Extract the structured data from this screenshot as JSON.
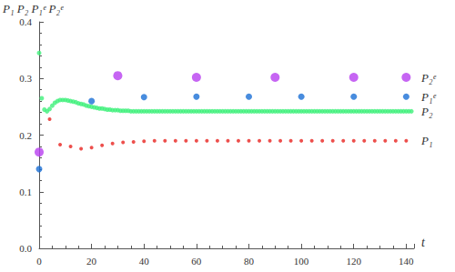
{
  "chart_data": {
    "type": "scatter",
    "x_label": "t",
    "y_label": "P₁ P₂ P₁ᵉ P₂ᵉ",
    "xlim": [
      0,
      143
    ],
    "xticks": [
      0,
      20,
      40,
      60,
      80,
      100,
      120,
      140
    ],
    "ylim": [
      0,
      0.4
    ],
    "yticks": [
      {
        "value": 0,
        "label": "0.0"
      },
      {
        "value": 0.1,
        "label": "0.1"
      },
      {
        "value": 0.2,
        "label": "0.2"
      },
      {
        "value": 0.3,
        "label": "0.3"
      },
      {
        "value": 0.4,
        "label": "0.4"
      }
    ],
    "grid": false,
    "series": [
      {
        "name": "P₂",
        "color": "#3ef07a",
        "marker": "circle",
        "x": [
          0,
          1,
          2,
          3,
          4,
          5,
          6,
          7,
          8,
          9,
          10,
          11,
          12,
          13,
          14,
          15,
          16,
          17,
          18,
          19,
          20,
          21,
          22,
          23,
          24,
          25,
          26,
          27,
          28,
          29,
          30,
          31,
          32,
          33,
          34,
          35,
          36,
          37,
          38,
          39,
          40,
          41,
          42,
          43,
          44,
          45,
          46,
          47,
          48,
          49,
          50,
          51,
          52,
          53,
          54,
          55,
          56,
          57,
          58,
          59,
          60,
          61,
          62,
          63,
          64,
          65,
          66,
          67,
          68,
          69,
          70,
          71,
          72,
          73,
          74,
          75,
          76,
          77,
          78,
          79,
          80,
          81,
          82,
          83,
          84,
          85,
          86,
          87,
          88,
          89,
          90,
          91,
          92,
          93,
          94,
          95,
          96,
          97,
          98,
          99,
          100,
          101,
          102,
          103,
          104,
          105,
          106,
          107,
          108,
          109,
          110,
          111,
          112,
          113,
          114,
          115,
          116,
          117,
          118,
          119,
          120,
          121,
          122,
          123,
          124,
          125,
          126,
          127,
          128,
          129,
          130,
          131,
          132,
          133,
          134,
          135,
          136,
          137,
          138,
          139,
          140,
          141,
          142
        ],
        "values": [
          0.345,
          0.265,
          0.245,
          0.242,
          0.246,
          0.252,
          0.257,
          0.26,
          0.262,
          0.262,
          0.262,
          0.261,
          0.26,
          0.259,
          0.258,
          0.256,
          0.255,
          0.254,
          0.252,
          0.251,
          0.25,
          0.249,
          0.248,
          0.247,
          0.247,
          0.246,
          0.245,
          0.245,
          0.244,
          0.244,
          0.244,
          0.243,
          0.243,
          0.243,
          0.243,
          0.242,
          0.242,
          0.242,
          0.242,
          0.242,
          0.242,
          0.242,
          0.242,
          0.242,
          0.242,
          0.242,
          0.242,
          0.242,
          0.242,
          0.242,
          0.242,
          0.242,
          0.242,
          0.242,
          0.242,
          0.242,
          0.242,
          0.242,
          0.242,
          0.242,
          0.242,
          0.242,
          0.242,
          0.242,
          0.242,
          0.242,
          0.242,
          0.242,
          0.242,
          0.242,
          0.242,
          0.242,
          0.242,
          0.242,
          0.242,
          0.242,
          0.242,
          0.242,
          0.242,
          0.242,
          0.242,
          0.242,
          0.242,
          0.242,
          0.242,
          0.242,
          0.242,
          0.242,
          0.242,
          0.242,
          0.242,
          0.242,
          0.242,
          0.242,
          0.242,
          0.242,
          0.242,
          0.242,
          0.242,
          0.242,
          0.242,
          0.242,
          0.242,
          0.242,
          0.242,
          0.242,
          0.242,
          0.242,
          0.242,
          0.242,
          0.242,
          0.242,
          0.242,
          0.242,
          0.242,
          0.242,
          0.242,
          0.242,
          0.242,
          0.242,
          0.242,
          0.242,
          0.242,
          0.242,
          0.242,
          0.242,
          0.242,
          0.242,
          0.242,
          0.242,
          0.242,
          0.242,
          0.242,
          0.242,
          0.242,
          0.242,
          0.242,
          0.242,
          0.242,
          0.242,
          0.242,
          0.242,
          0.242
        ]
      },
      {
        "name": "P₁",
        "color": "#e8231f",
        "marker": "circle",
        "x": [
          4,
          8,
          12,
          16,
          20,
          24,
          28,
          32,
          36,
          40,
          44,
          48,
          52,
          56,
          60,
          64,
          68,
          72,
          76,
          80,
          84,
          88,
          92,
          96,
          100,
          104,
          108,
          112,
          116,
          120,
          124,
          128,
          132,
          136,
          140
        ],
        "values": [
          0.228,
          0.183,
          0.18,
          0.176,
          0.178,
          0.182,
          0.185,
          0.187,
          0.188,
          0.189,
          0.19,
          0.19,
          0.19,
          0.19,
          0.19,
          0.19,
          0.19,
          0.19,
          0.19,
          0.19,
          0.19,
          0.19,
          0.19,
          0.19,
          0.19,
          0.19,
          0.19,
          0.19,
          0.19,
          0.19,
          0.19,
          0.19,
          0.19,
          0.19,
          0.19
        ]
      },
      {
        "name": "P₁ᵉ",
        "color": "#1a6fd6",
        "marker": "circle",
        "x": [
          0,
          20,
          40,
          60,
          80,
          100,
          120,
          140
        ],
        "values": [
          0.14,
          0.26,
          0.267,
          0.268,
          0.268,
          0.268,
          0.268,
          0.268
        ]
      },
      {
        "name": "P₂ᵉ",
        "color": "#b83ff0",
        "marker": "circle",
        "x": [
          0,
          30,
          60,
          90,
          120,
          140
        ],
        "values": [
          0.17,
          0.305,
          0.302,
          0.302,
          0.302,
          0.302
        ]
      }
    ]
  }
}
